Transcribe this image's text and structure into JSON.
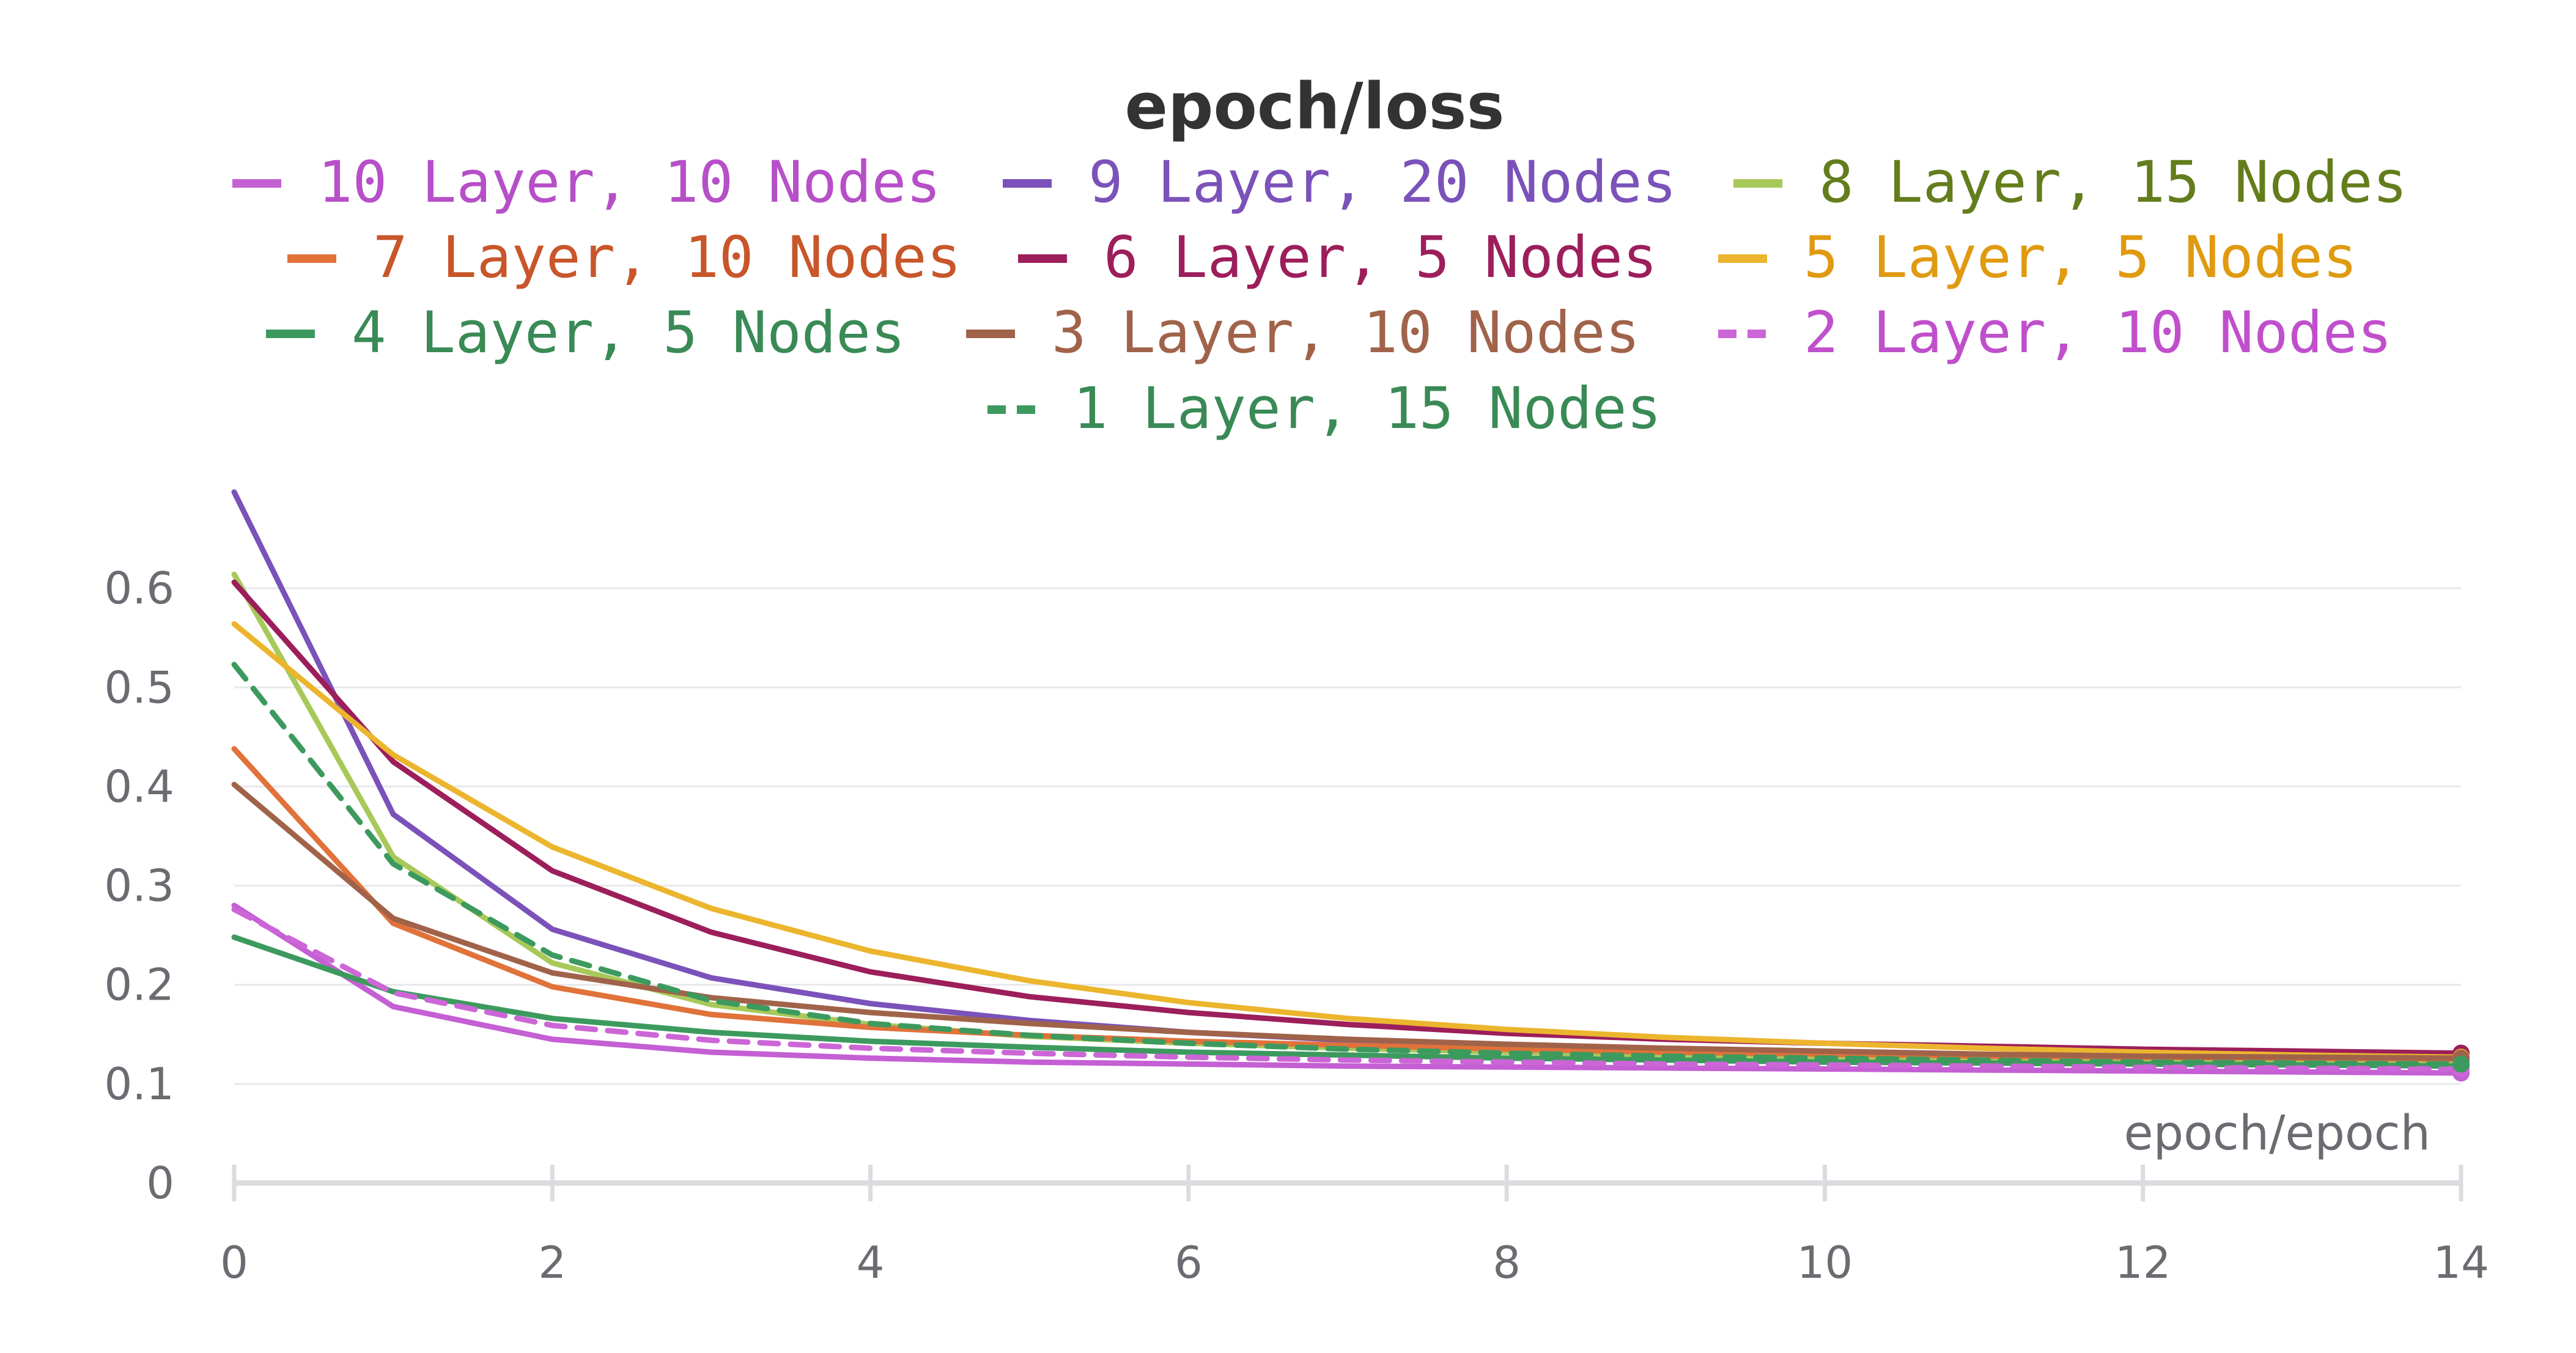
{
  "chart_data": {
    "type": "line",
    "title": "epoch/loss",
    "xlabel": "epoch/epoch",
    "ylabel": "",
    "xlim": [
      0,
      14
    ],
    "ylim": [
      0,
      0.7
    ],
    "x_ticks": [
      0,
      2,
      4,
      6,
      8,
      10,
      12,
      14
    ],
    "x_tick_labels": [
      "0",
      "2",
      "4",
      "6",
      "8",
      "10",
      "12",
      "14"
    ],
    "y_ticks": [
      0,
      0.1,
      0.2,
      0.3,
      0.4,
      0.5,
      0.6
    ],
    "y_tick_labels": [
      "0",
      "0.1",
      "0.2",
      "0.3",
      "0.4",
      "0.5",
      "0.6"
    ],
    "grid": true,
    "legend_position": "top",
    "x": [
      0,
      1,
      2,
      3,
      4,
      5,
      6,
      7,
      8,
      9,
      10,
      11,
      12,
      13,
      14
    ],
    "series": [
      {
        "name": "10 Layer, 10 Nodes",
        "color": "#c45fd4",
        "text_color": "#b64fc8",
        "dashed": false,
        "values": [
          0.28,
          0.178,
          0.145,
          0.132,
          0.126,
          0.122,
          0.12,
          0.118,
          0.117,
          0.116,
          0.115,
          0.114,
          0.113,
          0.112,
          0.111
        ]
      },
      {
        "name": "9 Layer, 20 Nodes",
        "color": "#7b52b9",
        "text_color": "#7b52b9",
        "dashed": false,
        "values": [
          0.697,
          0.372,
          0.256,
          0.207,
          0.181,
          0.164,
          0.152,
          0.144,
          0.138,
          0.134,
          0.131,
          0.129,
          0.127,
          0.126,
          0.125
        ]
      },
      {
        "name": "8 Layer, 15 Nodes",
        "color": "#a8c95a",
        "text_color": "#637d1c",
        "dashed": false,
        "values": [
          0.614,
          0.329,
          0.222,
          0.18,
          0.16,
          0.148,
          0.141,
          0.136,
          0.132,
          0.129,
          0.127,
          0.126,
          0.124,
          0.123,
          0.122
        ]
      },
      {
        "name": "7 Layer, 10 Nodes",
        "color": "#e0723a",
        "text_color": "#c8562a",
        "dashed": false,
        "values": [
          0.438,
          0.262,
          0.198,
          0.17,
          0.157,
          0.149,
          0.143,
          0.139,
          0.135,
          0.132,
          0.13,
          0.128,
          0.127,
          0.126,
          0.125
        ]
      },
      {
        "name": "6 Layer, 5 Nodes",
        "color": "#9c1e5a",
        "text_color": "#9c1e5a",
        "dashed": false,
        "values": [
          0.606,
          0.425,
          0.315,
          0.253,
          0.213,
          0.188,
          0.172,
          0.16,
          0.151,
          0.145,
          0.141,
          0.138,
          0.135,
          0.133,
          0.131
        ]
      },
      {
        "name": "5 Layer, 5 Nodes",
        "color": "#ecb52e",
        "text_color": "#e09a10",
        "dashed": false,
        "values": [
          0.564,
          0.432,
          0.339,
          0.277,
          0.234,
          0.204,
          0.182,
          0.166,
          0.155,
          0.147,
          0.141,
          0.136,
          0.132,
          0.129,
          0.127
        ]
      },
      {
        "name": "4 Layer, 5 Nodes",
        "color": "#3d9a5e",
        "text_color": "#3a8a56",
        "dashed": false,
        "values": [
          0.248,
          0.193,
          0.166,
          0.152,
          0.143,
          0.137,
          0.132,
          0.129,
          0.126,
          0.124,
          0.122,
          0.121,
          0.12,
          0.119,
          0.118
        ]
      },
      {
        "name": "3 Layer, 10 Nodes",
        "color": "#a0634a",
        "text_color": "#a0634a",
        "dashed": false,
        "values": [
          0.402,
          0.267,
          0.212,
          0.187,
          0.172,
          0.161,
          0.152,
          0.145,
          0.14,
          0.136,
          0.133,
          0.13,
          0.128,
          0.127,
          0.126
        ]
      },
      {
        "name": "2 Layer, 10 Nodes",
        "color": "#cc66d6",
        "text_color": "#c04fcc",
        "dashed": true,
        "values": [
          0.276,
          0.192,
          0.159,
          0.144,
          0.136,
          0.131,
          0.127,
          0.124,
          0.122,
          0.12,
          0.119,
          0.118,
          0.117,
          0.116,
          0.115
        ]
      },
      {
        "name": "1 Layer, 15 Nodes",
        "color": "#3d9a5e",
        "text_color": "#3a8a56",
        "dashed": true,
        "values": [
          0.523,
          0.322,
          0.23,
          0.184,
          0.161,
          0.149,
          0.141,
          0.135,
          0.131,
          0.128,
          0.126,
          0.124,
          0.122,
          0.121,
          0.12
        ]
      }
    ]
  }
}
